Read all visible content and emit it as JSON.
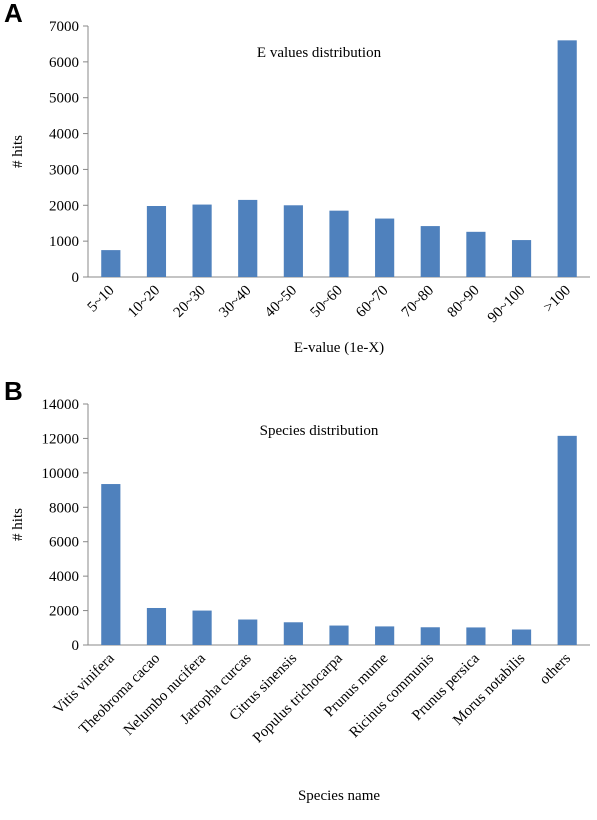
{
  "chart_data": [
    {
      "type": "bar",
      "panel_label": "A",
      "title": "E values distribution",
      "x_label": "E-value (1e-X)",
      "y_label": "# hits",
      "categories": [
        "5~10",
        "10~20",
        "20~30",
        "30~40",
        "40~50",
        "50~60",
        "60~70",
        "70~80",
        "80~90",
        "90~100",
        ">100"
      ],
      "values": [
        750,
        1980,
        2020,
        2150,
        2000,
        1850,
        1630,
        1420,
        1260,
        1030,
        6600
      ],
      "color": "#4f81bd",
      "ylim": [
        0,
        7000
      ],
      "yticks": [
        0,
        1000,
        2000,
        3000,
        4000,
        5000,
        6000,
        7000
      ],
      "grid": false
    },
    {
      "type": "bar",
      "panel_label": "B",
      "title": "Species distribution",
      "x_label": "Species name",
      "y_label": "# hits",
      "categories": [
        "Vitis vinifera",
        "Theobroma cacao",
        "Nelumbo nucifera",
        "Jatropha curcas",
        "Citrus sinensis",
        "Populus trichocarpa",
        "Prunus mume",
        "Ricinus communis",
        "Prunus persica",
        "Morus notabilis",
        "others"
      ],
      "values": [
        9350,
        2150,
        2000,
        1480,
        1320,
        1130,
        1080,
        1030,
        1020,
        900,
        12150
      ],
      "color": "#4f81bd",
      "ylim": [
        0,
        14000
      ],
      "yticks": [
        0,
        2000,
        4000,
        6000,
        8000,
        10000,
        12000,
        14000
      ],
      "grid": false
    }
  ]
}
